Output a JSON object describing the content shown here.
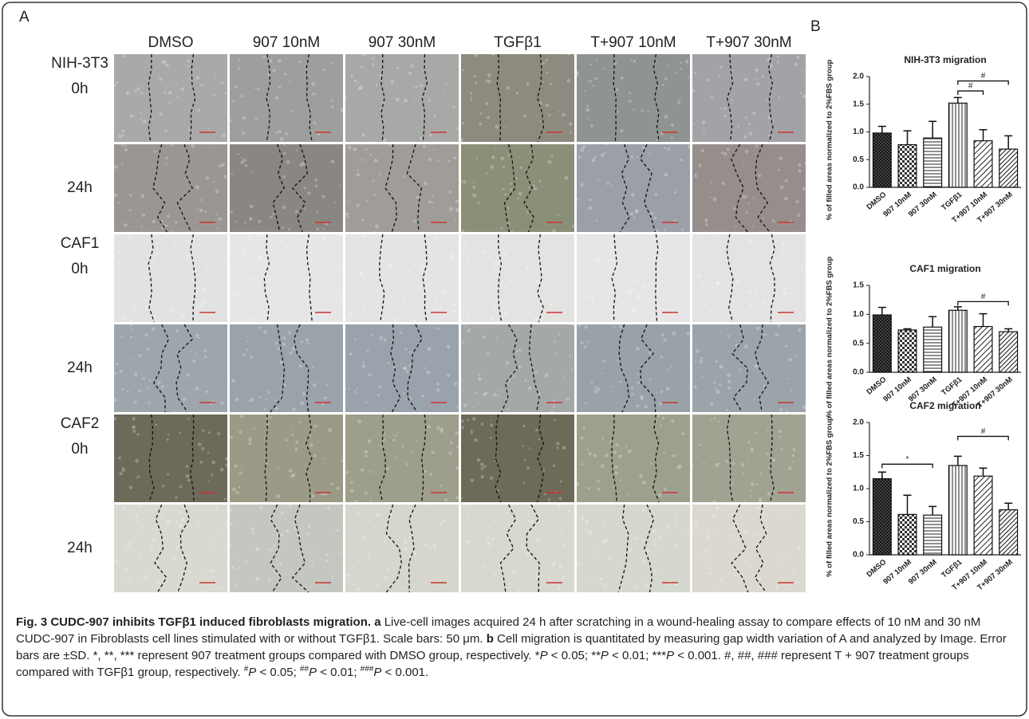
{
  "panel_a": {
    "label": "A",
    "columns": [
      "DMSO",
      "907 10nM",
      "907 30nM",
      "TGFβ1",
      "T+907 10nM",
      "T+907 30nM"
    ],
    "rows": [
      {
        "cell_line": "NIH-3T3",
        "time": "0h"
      },
      {
        "time": "24h"
      },
      {
        "cell_line": "CAF1",
        "time": "0h"
      },
      {
        "time": "24h"
      },
      {
        "cell_line": "CAF2",
        "time": "0h"
      },
      {
        "time": "24h"
      }
    ]
  },
  "panel_b": {
    "label": "B"
  },
  "chart_data": [
    {
      "type": "bar",
      "title": "NIH-3T3 migration",
      "y_label": "% of filled areas normalized to 2%FBS group",
      "categories": [
        "DMSO",
        "907 10nM",
        "907 30nM",
        "TGFβ1",
        "T+907 10nM",
        "T+907 30nM"
      ],
      "values": [
        0.98,
        0.77,
        0.89,
        1.52,
        0.84,
        0.69
      ],
      "errors": [
        0.12,
        0.25,
        0.3,
        0.1,
        0.2,
        0.24
      ],
      "ylim": [
        0,
        2
      ],
      "yticks": [
        {
          "value": 0,
          "label": "0.0"
        },
        0.5,
        {
          "value": 1,
          "label": "1.0"
        },
        1.5,
        {
          "value": 2,
          "label": "2.0"
        }
      ],
      "annotations": [
        {
          "text": "#",
          "groups": [
            "TGFβ1",
            "T+907 10nM"
          ]
        },
        {
          "text": "#",
          "groups": [
            "TGFβ1",
            "T+907 30nM"
          ]
        }
      ]
    },
    {
      "type": "bar",
      "title": "CAF1 migration",
      "y_label": "% of filled areas normalized to 2%FBS group",
      "categories": [
        "DMSO",
        "907 10nM",
        "907 30nM",
        "TGFβ1",
        "T+907 10nM",
        "T+907 30nM"
      ],
      "values": [
        0.99,
        0.73,
        0.78,
        1.07,
        0.79,
        0.7
      ],
      "errors": [
        0.13,
        0.02,
        0.18,
        0.06,
        0.22,
        0.05
      ],
      "ylim": [
        0,
        1.5
      ],
      "yticks": [
        {
          "value": 0,
          "label": "0.0"
        },
        0.5,
        {
          "value": 1,
          "label": "1.0"
        },
        1.5
      ],
      "annotations": [
        {
          "text": "#",
          "groups": [
            "TGFβ1",
            "T+907 30nM"
          ]
        }
      ]
    },
    {
      "type": "bar",
      "title": "CAF2 migration",
      "y_label": "% of filled areas normalized to 2%FBS group",
      "categories": [
        "DMSO",
        "907 10nM",
        "907 30nM",
        "TGFβ1",
        "T+907 10nM",
        "T+907 30nM"
      ],
      "values": [
        1.15,
        0.61,
        0.6,
        1.35,
        1.19,
        0.68
      ],
      "errors": [
        0.1,
        0.29,
        0.13,
        0.14,
        0.12,
        0.1
      ],
      "ylim": [
        0,
        2
      ],
      "yticks": [
        {
          "value": 0,
          "label": "0.0"
        },
        0.5,
        {
          "value": 1,
          "label": "1.0"
        },
        1.5,
        {
          "value": 2,
          "label": "2.0"
        }
      ],
      "annotations": [
        {
          "text": "*",
          "groups": [
            "DMSO",
            "907 30nM"
          ]
        },
        {
          "text": "#",
          "groups": [
            "TGFβ1",
            "T+907 30nM"
          ]
        }
      ]
    }
  ],
  "caption": {
    "title": "Fig. 3 CUDC-907 inhibits TGFβ1 induced fibroblasts migration.",
    "segments": [
      {
        "text": "a",
        "style": "bold"
      },
      {
        "text": " Live-cell images acquired 24 h after scratching in a wound-healing assay to compare effects of 10 nM and 30 nM CUDC-907 in Fibroblasts cell lines stimulated with or without TGFβ1. Scale bars: 50 μm. ",
        "style": "plain"
      },
      {
        "text": "b",
        "style": "bold"
      },
      {
        "text": " Cell migration is quantitated by measuring gap width variation of A and analyzed by Image. Error bars are ±SD. *, **, *** represent 907 treatment groups compared with DMSO group, respectively. *",
        "style": "plain"
      },
      {
        "text": "P",
        "style": "italic"
      },
      {
        "text": " < 0.05; **",
        "style": "plain"
      },
      {
        "text": "P",
        "style": "italic"
      },
      {
        "text": " < 0.01; ***",
        "style": "plain"
      },
      {
        "text": "P",
        "style": "italic"
      },
      {
        "text": " < 0.001. #, ##, ### represent T + 907 treatment groups compared with TGFβ1 group, respectively. ",
        "style": "plain"
      },
      {
        "text": "#",
        "style": "sup"
      },
      {
        "text": "P",
        "style": "italic"
      },
      {
        "text": " < 0.05; ",
        "style": "plain"
      },
      {
        "text": "##",
        "style": "sup"
      },
      {
        "text": "P",
        "style": "italic"
      },
      {
        "text": " < 0.01; ",
        "style": "plain"
      },
      {
        "text": "###",
        "style": "sup"
      },
      {
        "text": "P",
        "style": "italic"
      },
      {
        "text": " < 0.001.",
        "style": "plain"
      }
    ]
  }
}
